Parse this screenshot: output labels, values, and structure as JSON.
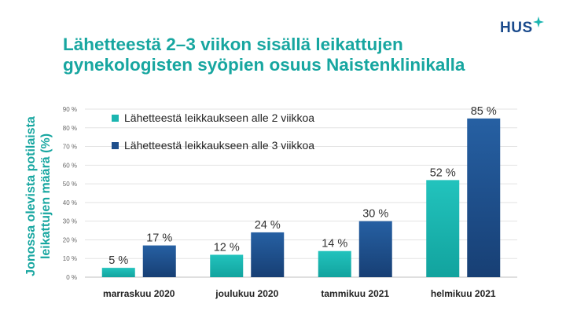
{
  "title_lines": [
    "Lähetteestä 2–3 viikon sisällä leikattujen",
    "gynekologisten syöpien osuus Naistenklinikalla"
  ],
  "logo_text": "HUS",
  "colors": {
    "teal": "#1bb5b0",
    "navy": "#1e4f8c",
    "title": "#17a6a0",
    "logo": "#1a4a8c"
  },
  "chart_data": {
    "type": "bar",
    "categories": [
      "marraskuu 2020",
      "joulukuu 2020",
      "tammikuu 2021",
      "helmikuu 2021"
    ],
    "series": [
      {
        "name": "Lähetteestä leikkaukseen alle 2 viikkoa",
        "values": [
          5,
          12,
          14,
          52
        ],
        "labels": [
          "5 %",
          "12 %",
          "14 %",
          "52 %"
        ]
      },
      {
        "name": "Lähetteestä leikkaukseen alle 3 viikkoa",
        "values": [
          17,
          24,
          30,
          85
        ],
        "labels": [
          "17 %",
          "24 %",
          "30 %",
          "85 %"
        ]
      }
    ],
    "ylabel_lines": [
      "Jonossa olevista potilaista",
      "leikattujen määrä (%)"
    ],
    "ylim": [
      0,
      90
    ],
    "ytick_values": [
      0,
      10,
      20,
      30,
      40,
      50,
      60,
      70,
      80,
      90
    ],
    "ytick_labels": [
      "0 %",
      "10 %",
      "20 %",
      "30 %",
      "40 %",
      "50 %",
      "60 %",
      "70 %",
      "80 %",
      "90 %"
    ],
    "grid": true,
    "legend_position": "top-left"
  }
}
